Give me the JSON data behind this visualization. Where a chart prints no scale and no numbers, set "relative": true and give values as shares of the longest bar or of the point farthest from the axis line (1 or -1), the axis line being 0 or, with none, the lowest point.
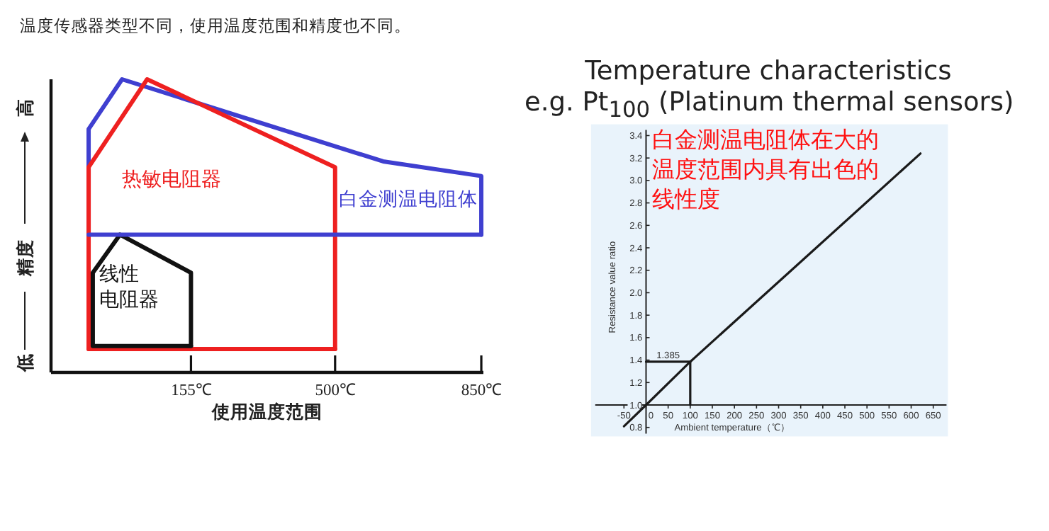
{
  "chart_data": [
    {
      "type": "line",
      "title": "温度传感器类型不同，使用温度范围和精度也不同。",
      "xlabel": "使用温度范围",
      "ylabel": "精度",
      "relative": true,
      "marker": "none",
      "xlim": [
        -180,
        855
      ],
      "xticks": [
        {
          "value": 155,
          "label": "155℃"
        },
        {
          "value": 500,
          "label": "500℃"
        },
        {
          "value": 850,
          "label": "850℃"
        }
      ],
      "annotations": [
        "高",
        "低"
      ],
      "series": [
        {
          "name": "白金测温电阻体",
          "color": "#3f3fd0",
          "x": [
            -90,
            -90,
            -10,
            615,
            850,
            850
          ],
          "values": [
            0.47,
            0.83,
            1.0,
            0.72,
            0.67,
            0.47
          ]
        },
        {
          "name": "热敏电阻器",
          "color": "#ee2020",
          "x": [
            -90,
            -90,
            50,
            500,
            500
          ],
          "values": [
            0.08,
            0.7,
            1.0,
            0.7,
            0.08
          ]
        },
        {
          "name": "线性电阻器",
          "color": "#111111",
          "x": [
            -80,
            -80,
            -15,
            155,
            155
          ],
          "values": [
            0.09,
            0.34,
            0.47,
            0.34,
            0.09
          ]
        },
        {
          "color": "#3f3fd0",
          "x": [
            -90,
            850
          ],
          "values": [
            0.47,
            0.47
          ]
        },
        {
          "color": "#ee2020",
          "x": [
            -90,
            500
          ],
          "values": [
            0.08,
            0.08
          ]
        },
        {
          "color": "#111111",
          "x": [
            -80,
            155
          ],
          "values": [
            0.09,
            0.09
          ]
        }
      ]
    },
    {
      "type": "line",
      "title": "Temperature characteristics",
      "subtitle": "e.g. Pt$_{100}$ (Platinum thermal sensors)",
      "xlabel": "Ambient temperature（℃）",
      "ylabel": "Resistance value ratio",
      "marker": "none",
      "xlim": [
        -115,
        680
      ],
      "ylim": [
        0.72,
        3.5
      ],
      "xticks": [
        -50,
        0,
        50,
        100,
        150,
        200,
        250,
        300,
        350,
        400,
        450,
        500,
        550,
        600,
        650
      ],
      "yticks": [
        0.8,
        {
          "value": 1,
          "label": "1.0"
        },
        1.2,
        1.4,
        1.6,
        1.8,
        {
          "value": 2,
          "label": "2.0"
        },
        2.2,
        2.4,
        2.6,
        2.8,
        {
          "value": 3,
          "label": "3.0"
        },
        3.2,
        3.4
      ],
      "annotations": [
        {
          "text": "1.385",
          "x": 50,
          "y": 1.385
        },
        "白金测温电阻体在大的温度范围内具有出色的线性度"
      ],
      "series": [
        {
          "color": "#1a1a1a",
          "x": [
            -50,
            0,
            100,
            621
          ],
          "values": [
            0.81,
            1.0,
            1.385,
            3.24
          ]
        },
        {
          "color": "#1a1a1a",
          "x": [
            0,
            100,
            100
          ],
          "values": [
            1.385,
            1.385,
            1.0
          ]
        }
      ]
    }
  ]
}
